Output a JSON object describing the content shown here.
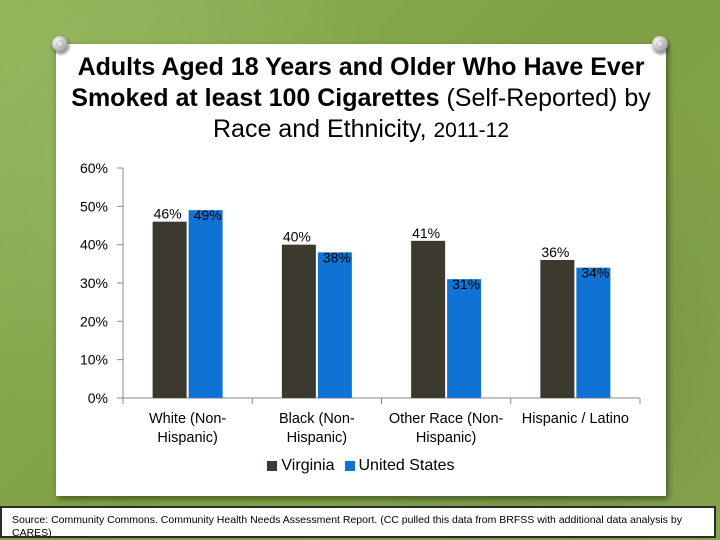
{
  "title": {
    "bold": "Adults Aged 18 Years and Older Who Have Ever Smoked at least 100 Cigarettes",
    "normal": "(Self-Reported) by Race and Ethnicity,",
    "years": "2011-12"
  },
  "colors": {
    "virginia": "#3c3a2e",
    "united_states": "#0f73d6"
  },
  "source": "Source: Community Commons. Community Health Needs Assessment Report. (CC pulled this data from BRFSS with additional data analysis by CARES)",
  "chart_data": {
    "type": "bar",
    "title": "Adults Aged 18 Years and Older Who Have Ever Smoked at least 100 Cigarettes (Self-Reported) by Race and Ethnicity, 2011-12",
    "categories": [
      [
        "White (Non-",
        "Hispanic)"
      ],
      [
        "Black (Non-",
        "Hispanic)"
      ],
      [
        "Other Race (Non-",
        "Hispanic)"
      ],
      [
        "Hispanic / Latino"
      ]
    ],
    "series": [
      {
        "name": "Virginia",
        "values": [
          46,
          40,
          41,
          36
        ]
      },
      {
        "name": "United States",
        "values": [
          49,
          38,
          31,
          34
        ]
      }
    ],
    "ylim": [
      0,
      60
    ],
    "yticks": [
      "0%",
      "10%",
      "20%",
      "30%",
      "40%",
      "50%",
      "60%"
    ],
    "ytick_values": [
      0,
      10,
      20,
      30,
      40,
      50,
      60
    ],
    "value_suffix": "%",
    "legend_position": "bottom",
    "grid": false,
    "xlabel": "",
    "ylabel": ""
  }
}
